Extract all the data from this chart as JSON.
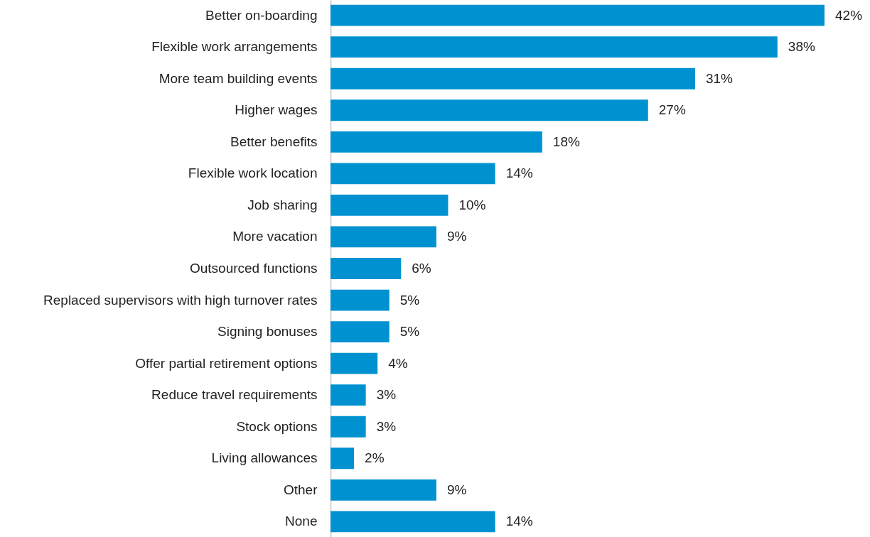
{
  "chart_data": {
    "type": "bar",
    "orientation": "horizontal",
    "data_labels": true,
    "categories": [
      "Better on-boarding",
      "Flexible work arrangements",
      "More team building events",
      "Higher wages",
      "Better benefits",
      "Flexible work location",
      "Job sharing",
      "More vacation",
      "Outsourced functions",
      "Replaced supervisors with high turnover rates",
      "Signing bonuses",
      "Offer partial retirement options",
      "Reduce travel requirements",
      "Stock options",
      "Living allowances",
      "Other",
      "None"
    ],
    "values": [
      42,
      38,
      31,
      27,
      18,
      14,
      10,
      9,
      6,
      5,
      5,
      4,
      3,
      3,
      2,
      9,
      14
    ],
    "value_labels": [
      "42%",
      "38%",
      "31%",
      "27%",
      "18%",
      "14%",
      "10%",
      "9%",
      "6%",
      "5%",
      "5%",
      "4%",
      "3%",
      "3%",
      "2%",
      "9%",
      "14%"
    ],
    "color": "#0092d0"
  }
}
